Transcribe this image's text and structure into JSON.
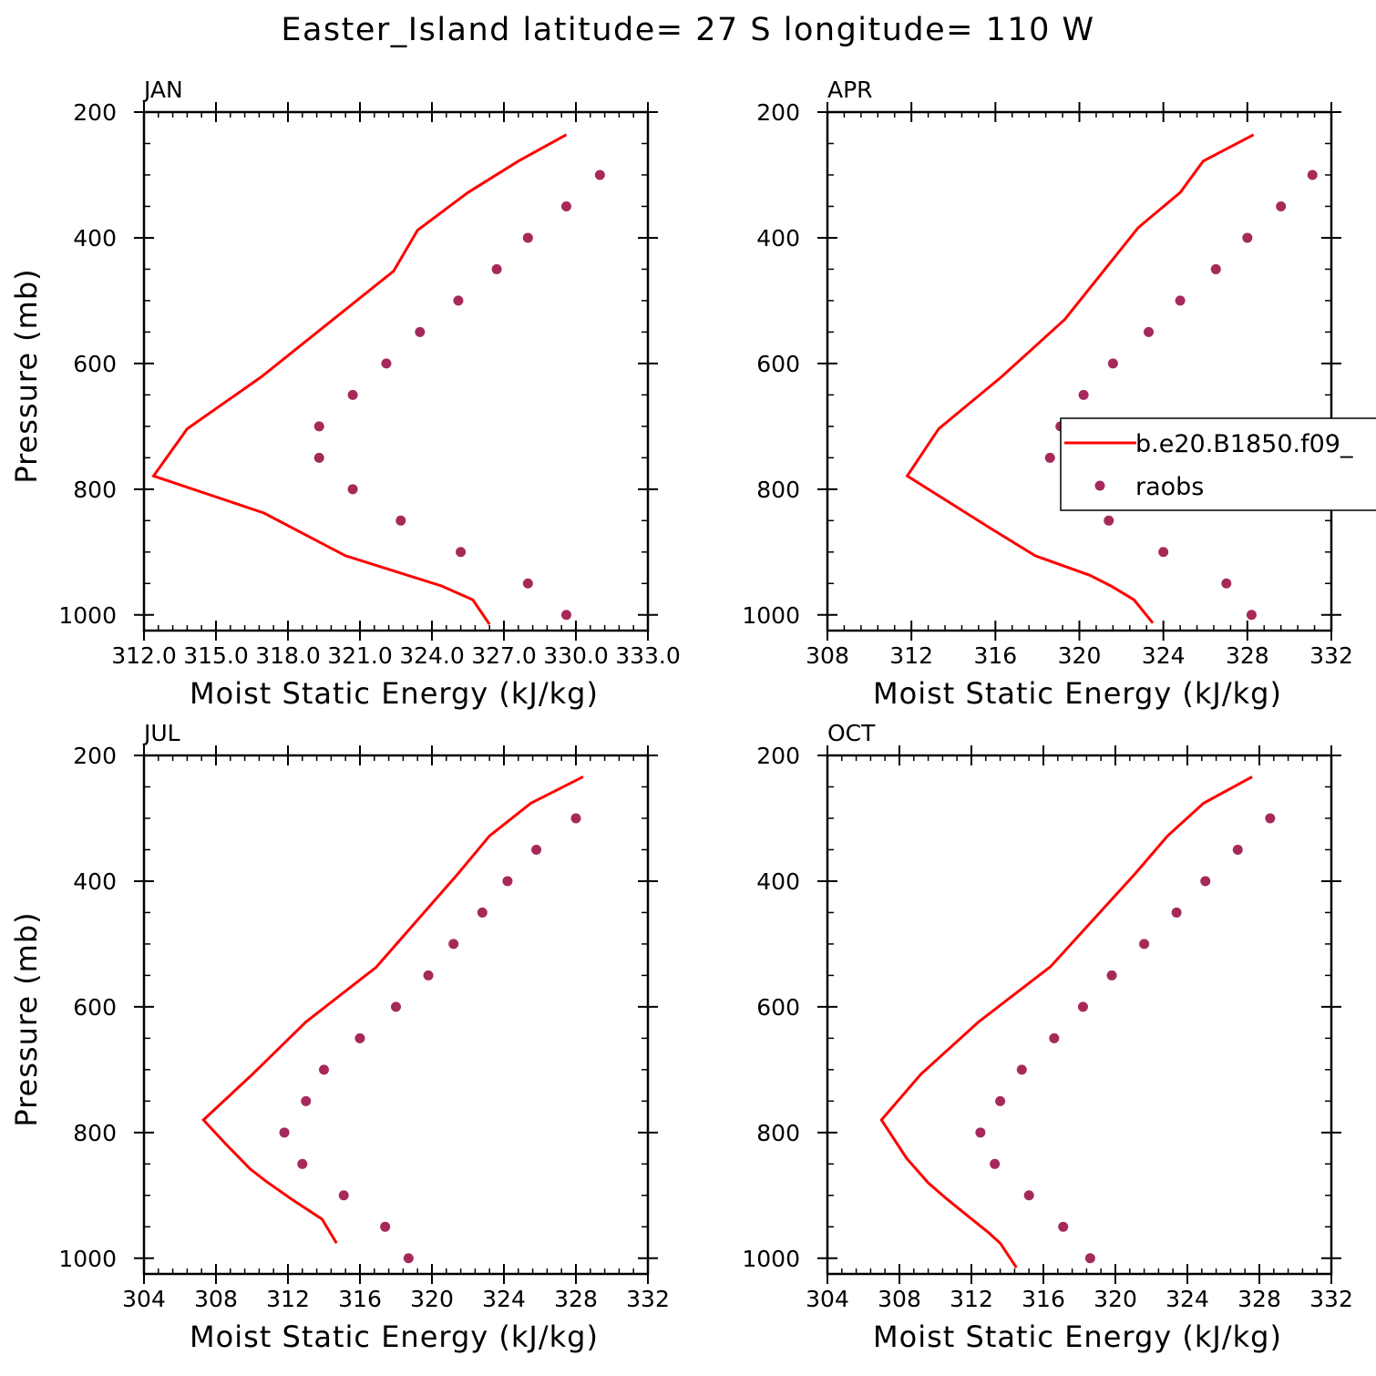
{
  "title": "Easter_Island  latitude= 27 S longitude= 110 W",
  "colors": {
    "model": "#ff0000",
    "obs": "#a6295a"
  },
  "legend": {
    "model_label": "b.e20.B1850.f09_",
    "obs_label": "raobs"
  },
  "chart_data": [
    {
      "type": "line",
      "panel": "JAN",
      "title": "JAN",
      "xlabel": "Moist Static Energy (kJ/kg)",
      "ylabel": "Pressure (mb)",
      "xlim": [
        312.0,
        333.0
      ],
      "ylim": [
        200,
        1025
      ],
      "y_inverted": true,
      "xticks": [
        312.0,
        315.0,
        318.0,
        321.0,
        324.0,
        327.0,
        330.0,
        333.0
      ],
      "xticklabels": [
        "312.0",
        "315.0",
        "318.0",
        "321.0",
        "324.0",
        "327.0",
        "330.0",
        "333.0"
      ],
      "yticks": [
        200,
        400,
        600,
        800,
        1000
      ],
      "series": [
        {
          "kind": "line",
          "x": [
            329.6,
            327.6,
            325.5,
            323.4,
            322.4,
            316.9,
            313.8,
            312.4,
            317.0,
            320.4,
            324.4,
            325.7,
            326.4
          ],
          "y": [
            236,
            278,
            328,
            388,
            453,
            621,
            704,
            779,
            838,
            906,
            954,
            976,
            1015
          ]
        },
        {
          "kind": "scatter",
          "x": [
            331.0,
            329.6,
            328.0,
            326.7,
            325.1,
            323.5,
            322.1,
            320.7,
            319.3,
            319.3,
            320.7,
            322.7,
            325.2,
            328.0,
            329.6
          ],
          "y": [
            300,
            350,
            400,
            450,
            500,
            550,
            600,
            650,
            700,
            750,
            800,
            850,
            900,
            950,
            1000
          ]
        }
      ]
    },
    {
      "type": "line",
      "panel": "APR",
      "title": "APR",
      "xlabel": "Moist Static Energy (kJ/kg)",
      "ylabel": "",
      "xlim": [
        308,
        332
      ],
      "ylim": [
        200,
        1025
      ],
      "y_inverted": true,
      "xticks": [
        308,
        312,
        316,
        320,
        324,
        328,
        332
      ],
      "xticklabels": [
        "308",
        "312",
        "316",
        "320",
        "324",
        "328",
        "332"
      ],
      "yticks": [
        200,
        400,
        600,
        800,
        1000
      ],
      "legend_position": "right",
      "series": [
        {
          "kind": "line",
          "x": [
            328.3,
            325.9,
            324.8,
            322.8,
            319.3,
            316.3,
            313.3,
            311.8,
            315.9,
            317.9,
            320.5,
            321.5,
            322.6,
            323.5
          ],
          "y": [
            236,
            278,
            328,
            384,
            530,
            621,
            704,
            779,
            865,
            906,
            937,
            954,
            976,
            1013
          ]
        },
        {
          "kind": "scatter",
          "x": [
            331.1,
            329.6,
            328.0,
            326.5,
            324.8,
            323.3,
            321.6,
            320.2,
            319.1,
            318.6,
            319.7,
            321.4,
            324.0,
            327.0,
            328.2
          ],
          "y": [
            300,
            350,
            400,
            450,
            500,
            550,
            600,
            650,
            700,
            750,
            800,
            850,
            900,
            950,
            1000
          ]
        }
      ]
    },
    {
      "type": "line",
      "panel": "JUL",
      "title": "JUL",
      "xlabel": "Moist Static Energy (kJ/kg)",
      "ylabel": "Pressure (mb)",
      "xlim": [
        304,
        332
      ],
      "ylim": [
        200,
        1025
      ],
      "y_inverted": true,
      "xticks": [
        304,
        308,
        312,
        316,
        320,
        324,
        328,
        332
      ],
      "xticklabels": [
        "304",
        "308",
        "312",
        "316",
        "320",
        "324",
        "328",
        "332"
      ],
      "yticks": [
        200,
        400,
        600,
        800,
        1000
      ],
      "series": [
        {
          "kind": "line",
          "x": [
            328.4,
            325.5,
            323.2,
            321.4,
            316.9,
            313.0,
            310.0,
            307.3,
            308.5,
            309.9,
            310.8,
            312.2,
            313.9,
            314.3,
            314.7
          ],
          "y": [
            234,
            276,
            328,
            390,
            537,
            624,
            708,
            780,
            817,
            858,
            878,
            906,
            938,
            957,
            976
          ]
        },
        {
          "kind": "scatter",
          "x": [
            328.0,
            325.8,
            324.2,
            322.8,
            321.2,
            319.8,
            318.0,
            316.0,
            314.0,
            313.0,
            311.8,
            312.8,
            315.1,
            317.4,
            318.7
          ],
          "y": [
            300,
            350,
            400,
            450,
            500,
            550,
            600,
            650,
            700,
            750,
            800,
            850,
            900,
            950,
            1000
          ]
        }
      ]
    },
    {
      "type": "line",
      "panel": "OCT",
      "title": "OCT",
      "xlabel": "Moist Static Energy (kJ/kg)",
      "ylabel": "",
      "xlim": [
        304,
        332
      ],
      "ylim": [
        200,
        1025
      ],
      "y_inverted": true,
      "xticks": [
        304,
        308,
        312,
        316,
        320,
        324,
        328,
        332
      ],
      "xticklabels": [
        "304",
        "308",
        "312",
        "316",
        "320",
        "324",
        "328",
        "332"
      ],
      "yticks": [
        200,
        400,
        600,
        800,
        1000
      ],
      "series": [
        {
          "kind": "line",
          "x": [
            327.6,
            324.9,
            322.9,
            321.1,
            316.4,
            312.4,
            309.2,
            307.0,
            308.4,
            309.6,
            310.6,
            311.9,
            312.9,
            313.6,
            314.5
          ],
          "y": [
            234,
            276,
            328,
            388,
            536,
            624,
            707,
            780,
            841,
            880,
            905,
            935,
            958,
            976,
            1015
          ]
        },
        {
          "kind": "scatter",
          "x": [
            328.6,
            326.8,
            325.0,
            323.4,
            321.6,
            319.8,
            318.2,
            316.6,
            314.8,
            313.6,
            312.5,
            313.3,
            315.2,
            317.1,
            318.6
          ],
          "y": [
            300,
            350,
            400,
            450,
            500,
            550,
            600,
            650,
            700,
            750,
            800,
            850,
            900,
            950,
            1000
          ]
        }
      ]
    }
  ]
}
